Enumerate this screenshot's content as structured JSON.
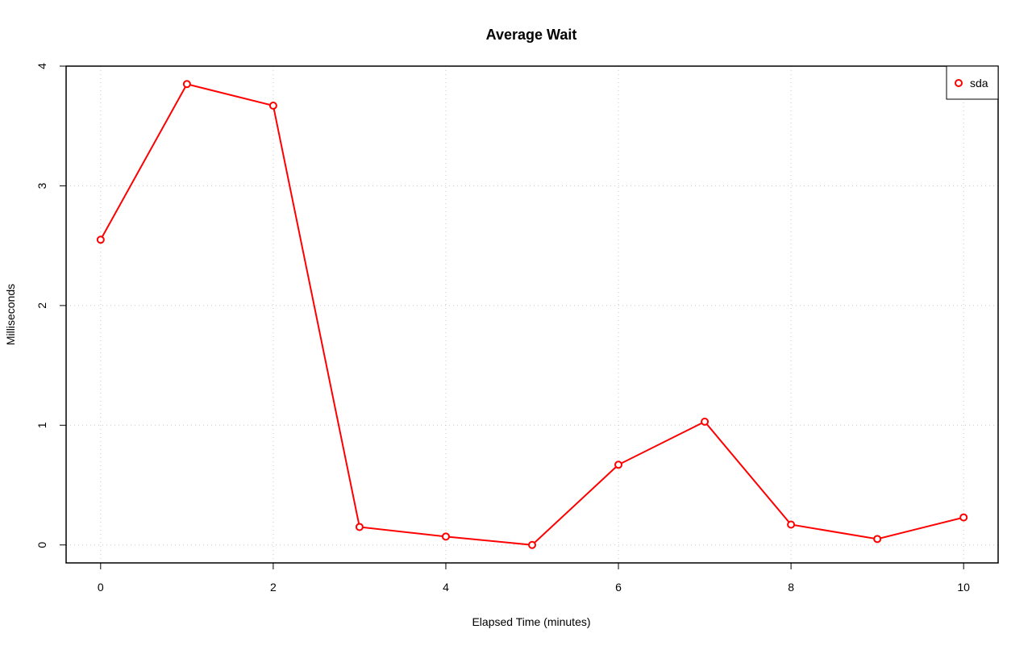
{
  "chart_data": {
    "type": "line",
    "title": "Average Wait",
    "xlabel": "Elapsed Time (minutes)",
    "ylabel": "Milliseconds",
    "xlim": [
      -0.4,
      10.4
    ],
    "ylim": [
      -0.15,
      4
    ],
    "x_ticks": [
      0,
      2,
      4,
      6,
      8,
      10
    ],
    "y_ticks": [
      0,
      1,
      2,
      3,
      4
    ],
    "grid": true,
    "legend_position": "top-right",
    "series": [
      {
        "name": "sda",
        "color": "#ff0000",
        "marker": "open-circle",
        "x": [
          0,
          1,
          2,
          3,
          4,
          5,
          6,
          7,
          8,
          9,
          10
        ],
        "y": [
          2.55,
          3.85,
          3.67,
          0.15,
          0.07,
          0.0,
          0.67,
          1.03,
          0.17,
          0.05,
          0.23
        ]
      }
    ]
  }
}
